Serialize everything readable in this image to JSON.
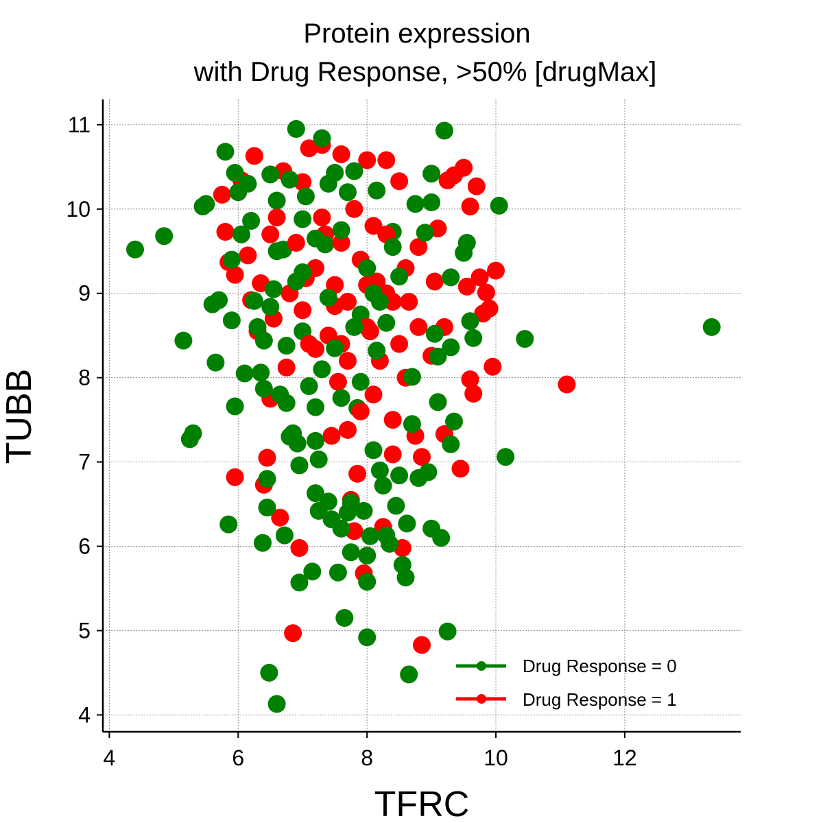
{
  "chart_data": {
    "type": "scatter",
    "title": [
      "Protein expression",
      "with Drug Response, >50% [drugMax]"
    ],
    "xlabel": "TFRC",
    "ylabel": "TUBB",
    "xlim": [
      3.9,
      13.8
    ],
    "ylim": [
      3.8,
      11.3
    ],
    "xticks": [
      4,
      6,
      8,
      10,
      12
    ],
    "yticks": [
      4,
      5,
      6,
      7,
      8,
      9,
      10,
      11
    ],
    "grid": true,
    "legend_position": "lower-right",
    "series": [
      {
        "name": "Drug Response = 0",
        "color": "#008000",
        "points": [
          [
            4.4,
            9.52
          ],
          [
            4.85,
            9.68
          ],
          [
            5.15,
            8.44
          ],
          [
            5.3,
            7.34
          ],
          [
            5.25,
            7.27
          ],
          [
            5.45,
            10.03
          ],
          [
            5.5,
            10.06
          ],
          [
            5.6,
            8.87
          ],
          [
            5.65,
            8.18
          ],
          [
            5.7,
            8.92
          ],
          [
            5.8,
            10.68
          ],
          [
            5.85,
            6.26
          ],
          [
            5.9,
            8.68
          ],
          [
            5.9,
            9.4
          ],
          [
            5.95,
            7.66
          ],
          [
            5.95,
            10.43
          ],
          [
            6.0,
            10.2
          ],
          [
            6.05,
            9.7
          ],
          [
            6.1,
            8.05
          ],
          [
            6.15,
            10.3
          ],
          [
            6.2,
            9.86
          ],
          [
            6.25,
            8.91
          ],
          [
            6.3,
            8.6
          ],
          [
            6.35,
            8.06
          ],
          [
            6.38,
            6.04
          ],
          [
            6.4,
            8.44
          ],
          [
            6.4,
            7.87
          ],
          [
            6.45,
            6.46
          ],
          [
            6.45,
            6.8
          ],
          [
            6.48,
            4.5
          ],
          [
            6.5,
            10.41
          ],
          [
            6.5,
            8.84
          ],
          [
            6.55,
            9.05
          ],
          [
            6.6,
            10.1
          ],
          [
            6.6,
            4.13
          ],
          [
            6.65,
            7.8
          ],
          [
            6.7,
            9.52
          ],
          [
            6.72,
            6.13
          ],
          [
            6.75,
            7.7
          ],
          [
            6.75,
            8.38
          ],
          [
            6.8,
            7.3
          ],
          [
            6.85,
            7.34
          ],
          [
            6.9,
            10.95
          ],
          [
            6.9,
            9.14
          ],
          [
            6.92,
            7.22
          ],
          [
            6.95,
            5.57
          ],
          [
            6.95,
            6.96
          ],
          [
            7.0,
            8.55
          ],
          [
            7.0,
            9.88
          ],
          [
            7.05,
            10.15
          ],
          [
            7.1,
            7.9
          ],
          [
            7.15,
            5.7
          ],
          [
            7.2,
            6.63
          ],
          [
            7.2,
            7.25
          ],
          [
            7.25,
            6.42
          ],
          [
            7.25,
            7.03
          ],
          [
            7.3,
            10.84
          ],
          [
            7.3,
            8.1
          ],
          [
            7.35,
            9.58
          ],
          [
            7.4,
            6.53
          ],
          [
            7.45,
            6.32
          ],
          [
            7.5,
            10.43
          ],
          [
            7.55,
            5.69
          ],
          [
            7.6,
            6.21
          ],
          [
            7.6,
            7.76
          ],
          [
            7.65,
            5.15
          ],
          [
            7.7,
            6.4
          ],
          [
            7.75,
            6.52
          ],
          [
            7.75,
            5.93
          ],
          [
            7.8,
            10.45
          ],
          [
            7.85,
            7.64
          ],
          [
            7.9,
            8.75
          ],
          [
            7.95,
            6.42
          ],
          [
            8.0,
            5.89
          ],
          [
            8.0,
            5.58
          ],
          [
            8.0,
            4.92
          ],
          [
            8.05,
            6.12
          ],
          [
            8.1,
            7.14
          ],
          [
            8.15,
            10.22
          ],
          [
            8.15,
            8.32
          ],
          [
            8.2,
            6.9
          ],
          [
            8.25,
            6.72
          ],
          [
            8.3,
            6.13
          ],
          [
            8.35,
            6.03
          ],
          [
            8.4,
            9.73
          ],
          [
            8.45,
            6.48
          ],
          [
            8.5,
            6.84
          ],
          [
            8.55,
            5.78
          ],
          [
            8.6,
            5.63
          ],
          [
            8.62,
            6.27
          ],
          [
            8.65,
            4.48
          ],
          [
            8.7,
            8.01
          ],
          [
            8.75,
            10.06
          ],
          [
            8.8,
            6.81
          ],
          [
            8.9,
            9.72
          ],
          [
            8.95,
            6.88
          ],
          [
            9.0,
            6.21
          ],
          [
            9.0,
            10.42
          ],
          [
            9.0,
            10.08
          ],
          [
            9.05,
            8.52
          ],
          [
            9.1,
            7.71
          ],
          [
            9.15,
            6.1
          ],
          [
            9.2,
            10.93
          ],
          [
            9.25,
            4.99
          ],
          [
            9.3,
            7.21
          ],
          [
            9.3,
            8.36
          ],
          [
            9.3,
            9.19
          ],
          [
            9.35,
            7.48
          ],
          [
            9.5,
            9.48
          ],
          [
            9.55,
            9.6
          ],
          [
            9.6,
            8.67
          ],
          [
            9.65,
            8.47
          ],
          [
            10.05,
            10.04
          ],
          [
            10.15,
            7.06
          ],
          [
            10.45,
            8.46
          ],
          [
            13.35,
            8.6
          ],
          [
            7.4,
            8.95
          ],
          [
            7.6,
            9.75
          ],
          [
            7.8,
            8.6
          ],
          [
            8.0,
            9.3
          ],
          [
            8.2,
            8.9
          ],
          [
            8.4,
            9.55
          ],
          [
            7.2,
            9.65
          ],
          [
            7.0,
            9.25
          ],
          [
            6.6,
            9.5
          ],
          [
            7.5,
            8.35
          ],
          [
            8.3,
            8.65
          ],
          [
            7.9,
            7.95
          ],
          [
            7.2,
            7.65
          ],
          [
            8.7,
            7.45
          ],
          [
            9.1,
            8.25
          ],
          [
            8.1,
            9.0
          ],
          [
            6.8,
            10.35
          ],
          [
            7.4,
            10.3
          ],
          [
            7.7,
            10.2
          ],
          [
            8.5,
            9.2
          ]
        ]
      },
      {
        "name": "Drug Response = 1",
        "color": "#ff0000",
        "points": [
          [
            5.75,
            10.17
          ],
          [
            5.8,
            9.73
          ],
          [
            5.85,
            9.37
          ],
          [
            5.95,
            9.22
          ],
          [
            5.95,
            6.82
          ],
          [
            6.05,
            10.34
          ],
          [
            6.15,
            9.45
          ],
          [
            6.2,
            8.92
          ],
          [
            6.25,
            10.63
          ],
          [
            6.3,
            8.55
          ],
          [
            6.35,
            9.12
          ],
          [
            6.4,
            6.73
          ],
          [
            6.45,
            7.05
          ],
          [
            6.5,
            7.75
          ],
          [
            6.55,
            8.7
          ],
          [
            6.65,
            6.34
          ],
          [
            6.7,
            10.45
          ],
          [
            6.75,
            8.12
          ],
          [
            6.8,
            9.0
          ],
          [
            6.85,
            4.97
          ],
          [
            6.95,
            5.98
          ],
          [
            7.0,
            10.32
          ],
          [
            7.05,
            9.18
          ],
          [
            7.1,
            10.72
          ],
          [
            7.2,
            8.34
          ],
          [
            7.3,
            10.76
          ],
          [
            7.35,
            9.7
          ],
          [
            7.45,
            7.31
          ],
          [
            7.5,
            8.85
          ],
          [
            7.55,
            7.95
          ],
          [
            7.6,
            10.65
          ],
          [
            7.7,
            7.38
          ],
          [
            7.75,
            6.55
          ],
          [
            7.8,
            6.18
          ],
          [
            7.85,
            6.86
          ],
          [
            7.95,
            5.68
          ],
          [
            8.0,
            10.58
          ],
          [
            8.05,
            8.55
          ],
          [
            8.15,
            9.14
          ],
          [
            8.25,
            6.23
          ],
          [
            8.3,
            10.58
          ],
          [
            8.4,
            7.09
          ],
          [
            8.5,
            10.33
          ],
          [
            8.55,
            5.98
          ],
          [
            8.65,
            8.9
          ],
          [
            8.75,
            7.31
          ],
          [
            8.8,
            9.55
          ],
          [
            8.85,
            7.06
          ],
          [
            8.85,
            4.83
          ],
          [
            9.0,
            8.26
          ],
          [
            9.05,
            9.14
          ],
          [
            9.1,
            9.77
          ],
          [
            9.2,
            7.33
          ],
          [
            9.25,
            10.34
          ],
          [
            9.35,
            10.4
          ],
          [
            9.45,
            6.92
          ],
          [
            9.5,
            10.49
          ],
          [
            9.55,
            9.08
          ],
          [
            9.6,
            10.03
          ],
          [
            9.65,
            7.81
          ],
          [
            9.7,
            10.27
          ],
          [
            9.75,
            9.19
          ],
          [
            9.8,
            8.76
          ],
          [
            9.85,
            9.01
          ],
          [
            9.95,
            8.13
          ],
          [
            10.0,
            9.27
          ],
          [
            11.1,
            7.92
          ],
          [
            9.6,
            7.98
          ],
          [
            9.9,
            8.82
          ],
          [
            7.5,
            9.1
          ],
          [
            7.7,
            8.9
          ],
          [
            7.9,
            9.4
          ],
          [
            8.1,
            9.8
          ],
          [
            8.3,
            9.0
          ],
          [
            8.5,
            8.4
          ],
          [
            7.6,
            9.6
          ],
          [
            7.8,
            10.0
          ],
          [
            8.0,
            8.6
          ],
          [
            8.2,
            8.2
          ],
          [
            7.4,
            8.5
          ],
          [
            7.2,
            9.3
          ],
          [
            7.0,
            8.8
          ],
          [
            8.4,
            8.9
          ],
          [
            8.6,
            9.3
          ],
          [
            8.0,
            9.1
          ],
          [
            7.7,
            8.2
          ],
          [
            8.3,
            9.7
          ],
          [
            7.9,
            7.6
          ],
          [
            8.6,
            8.0
          ],
          [
            6.9,
            9.6
          ],
          [
            6.6,
            9.9
          ],
          [
            7.3,
            9.9
          ],
          [
            8.1,
            7.8
          ],
          [
            8.8,
            8.6
          ],
          [
            6.5,
            9.7
          ],
          [
            7.1,
            8.4
          ],
          [
            9.2,
            8.6
          ],
          [
            8.4,
            7.5
          ],
          [
            7.6,
            8.4
          ]
        ]
      }
    ]
  }
}
